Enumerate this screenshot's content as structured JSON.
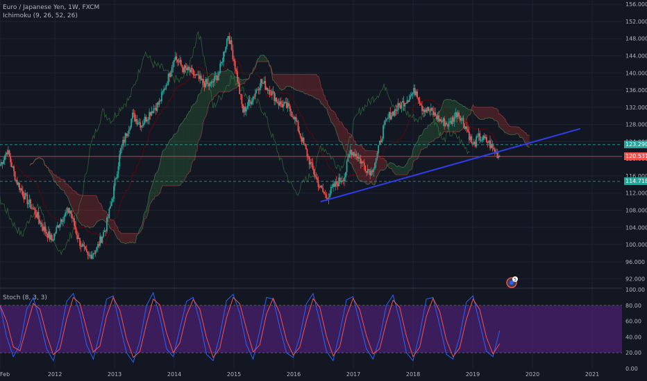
{
  "header": {
    "symbol_line": "Euro / Japanese Yen, 1W, FXCM",
    "indicator_line": "Ichimoku (9, 26, 52, 26)"
  },
  "stoch_legend": "Stoch (8, 3, 3)",
  "price_tags": [
    {
      "label": "123.290",
      "value": 123.29,
      "color": "#26a69a"
    },
    {
      "label": "120.531",
      "value": 120.531,
      "color": "#ef5350"
    },
    {
      "label": "114.718",
      "value": 114.718,
      "color": "#26a69a"
    }
  ],
  "alert_badge": "5",
  "colors": {
    "background": "#131722",
    "grid": "#1f2433",
    "axis_text": "#b2b5be",
    "up": "#26a69a",
    "down": "#ef5350",
    "trendline": "#2f3ee8",
    "stoch_band": "#4a2070",
    "stoch_k": "#2962ff",
    "stoch_d": "#ef5350"
  },
  "chart_data": [
    {
      "type": "candlestick",
      "title": "Euro / Japanese Yen, 1W, FXCM",
      "y_ticks": [
        "156.000",
        "152.000",
        "148.000",
        "144.000",
        "140.000",
        "136.000",
        "132.000",
        "128.000",
        "124.000",
        "120.000",
        "116.000",
        "112.000",
        "108.000",
        "104.000",
        "100.000",
        "96.000",
        "92.000"
      ],
      "x_ticks": [
        "Feb",
        "2012",
        "2013",
        "2014",
        "2015",
        "2016",
        "2017",
        "2018",
        "2019",
        "2020",
        "2021"
      ],
      "ylim": [
        90,
        157
      ],
      "xlim": [
        2011.08,
        2021.5
      ],
      "series": [
        {
          "name": "close",
          "points": [
            [
              2011.08,
              118.5
            ],
            [
              2011.2,
              122
            ],
            [
              2011.35,
              115
            ],
            [
              2011.5,
              111
            ],
            [
              2011.65,
              108
            ],
            [
              2011.8,
              104
            ],
            [
              2011.95,
              101
            ],
            [
              2012.1,
              106
            ],
            [
              2012.25,
              108
            ],
            [
              2012.4,
              101
            ],
            [
              2012.55,
              97
            ],
            [
              2012.7,
              99
            ],
            [
              2012.85,
              104
            ],
            [
              2012.95,
              110
            ],
            [
              2013.1,
              122
            ],
            [
              2013.3,
              130
            ],
            [
              2013.45,
              128
            ],
            [
              2013.6,
              131
            ],
            [
              2013.75,
              133
            ],
            [
              2013.9,
              139
            ],
            [
              2014.0,
              144
            ],
            [
              2014.15,
              141
            ],
            [
              2014.3,
              140
            ],
            [
              2014.45,
              138
            ],
            [
              2014.6,
              137
            ],
            [
              2014.75,
              140
            ],
            [
              2014.9,
              149
            ],
            [
              2015.0,
              143
            ],
            [
              2015.15,
              131
            ],
            [
              2015.3,
              134
            ],
            [
              2015.45,
              138
            ],
            [
              2015.6,
              136
            ],
            [
              2015.75,
              133
            ],
            [
              2015.9,
              132
            ],
            [
              2016.0,
              130
            ],
            [
              2016.15,
              124
            ],
            [
              2016.3,
              118
            ],
            [
              2016.45,
              113
            ],
            [
              2016.55,
              111
            ],
            [
              2016.7,
              114
            ],
            [
              2016.85,
              116
            ],
            [
              2016.95,
              122
            ],
            [
              2017.05,
              121
            ],
            [
              2017.2,
              118
            ],
            [
              2017.3,
              117
            ],
            [
              2017.4,
              121
            ],
            [
              2017.5,
              127
            ],
            [
              2017.6,
              130
            ],
            [
              2017.75,
              132
            ],
            [
              2017.9,
              134
            ],
            [
              2018.05,
              136
            ],
            [
              2018.15,
              132
            ],
            [
              2018.3,
              131
            ],
            [
              2018.45,
              129
            ],
            [
              2018.6,
              128
            ],
            [
              2018.75,
              131
            ],
            [
              2018.9,
              127
            ],
            [
              2019.0,
              123
            ],
            [
              2019.1,
              125
            ],
            [
              2019.25,
              124
            ],
            [
              2019.35,
              122
            ],
            [
              2019.45,
              120.5
            ]
          ]
        },
        {
          "name": "trendline",
          "points": [
            [
              2016.45,
              110
            ],
            [
              2020.8,
              127
            ]
          ]
        }
      ]
    },
    {
      "type": "line",
      "title": "Stoch (8, 3, 3)",
      "y_ticks": [
        "100.00",
        "80.00",
        "60.00",
        "40.00",
        "20.00",
        "0.00"
      ],
      "ylim": [
        0,
        100
      ],
      "bands": [
        20,
        80
      ],
      "series": [
        {
          "name": "",
          "values": [
            80,
            40,
            15,
            30,
            75,
            90,
            60,
            25,
            10,
            40,
            85,
            95,
            70,
            30,
            12,
            45,
            88,
            92,
            55,
            20,
            8,
            35,
            80,
            96,
            65,
            25,
            15,
            50,
            85,
            90,
            60,
            18,
            10,
            42,
            86,
            94,
            70,
            30,
            12,
            48,
            90,
            88,
            52,
            20,
            14,
            40,
            82,
            95,
            60,
            22,
            10,
            45,
            87,
            91,
            58,
            25,
            12,
            38,
            80,
            93,
            62,
            20,
            10,
            44,
            88,
            90,
            55,
            18,
            12,
            40,
            84,
            92,
            58,
            22,
            15,
            48
          ]
        }
      ]
    }
  ]
}
